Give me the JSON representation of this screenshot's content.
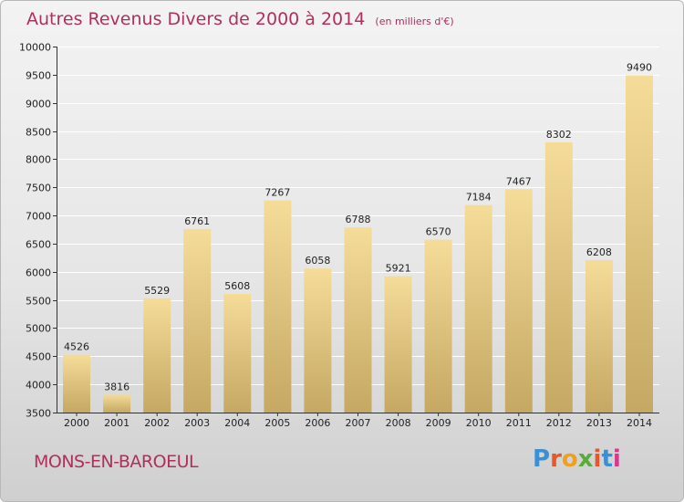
{
  "header": {
    "title": "Autres Revenus Divers de 2000 à 2014",
    "subtitle": "(en milliers d'€)"
  },
  "footer": {
    "commune": "MONS-EN-BAROEUL",
    "brand": "Proxiti",
    "brand_colors": [
      "#3b8fd4",
      "#e8572a",
      "#f0a020",
      "#5aab3a",
      "#e8572a",
      "#3b8fd4",
      "#d63a8c"
    ]
  },
  "colors": {
    "title": "#b0305a",
    "bar_light": "#f5dc98",
    "bar_dark": "#c4a864",
    "grid": "#ffffff"
  },
  "chart_data": {
    "type": "bar",
    "categories": [
      "2000",
      "2001",
      "2002",
      "2003",
      "2004",
      "2005",
      "2006",
      "2007",
      "2008",
      "2009",
      "2010",
      "2011",
      "2012",
      "2013",
      "2014"
    ],
    "values": [
      4526,
      3816,
      5529,
      6761,
      5608,
      7267,
      6058,
      6788,
      5921,
      6570,
      7184,
      7467,
      8302,
      6208,
      9490
    ],
    "ylim": [
      3500,
      10000
    ],
    "yticks": [
      3500,
      4000,
      4500,
      5000,
      5500,
      6000,
      6500,
      7000,
      7500,
      8000,
      8500,
      9000,
      9500,
      10000
    ],
    "grid": true,
    "xlabel": "",
    "ylabel": ""
  }
}
